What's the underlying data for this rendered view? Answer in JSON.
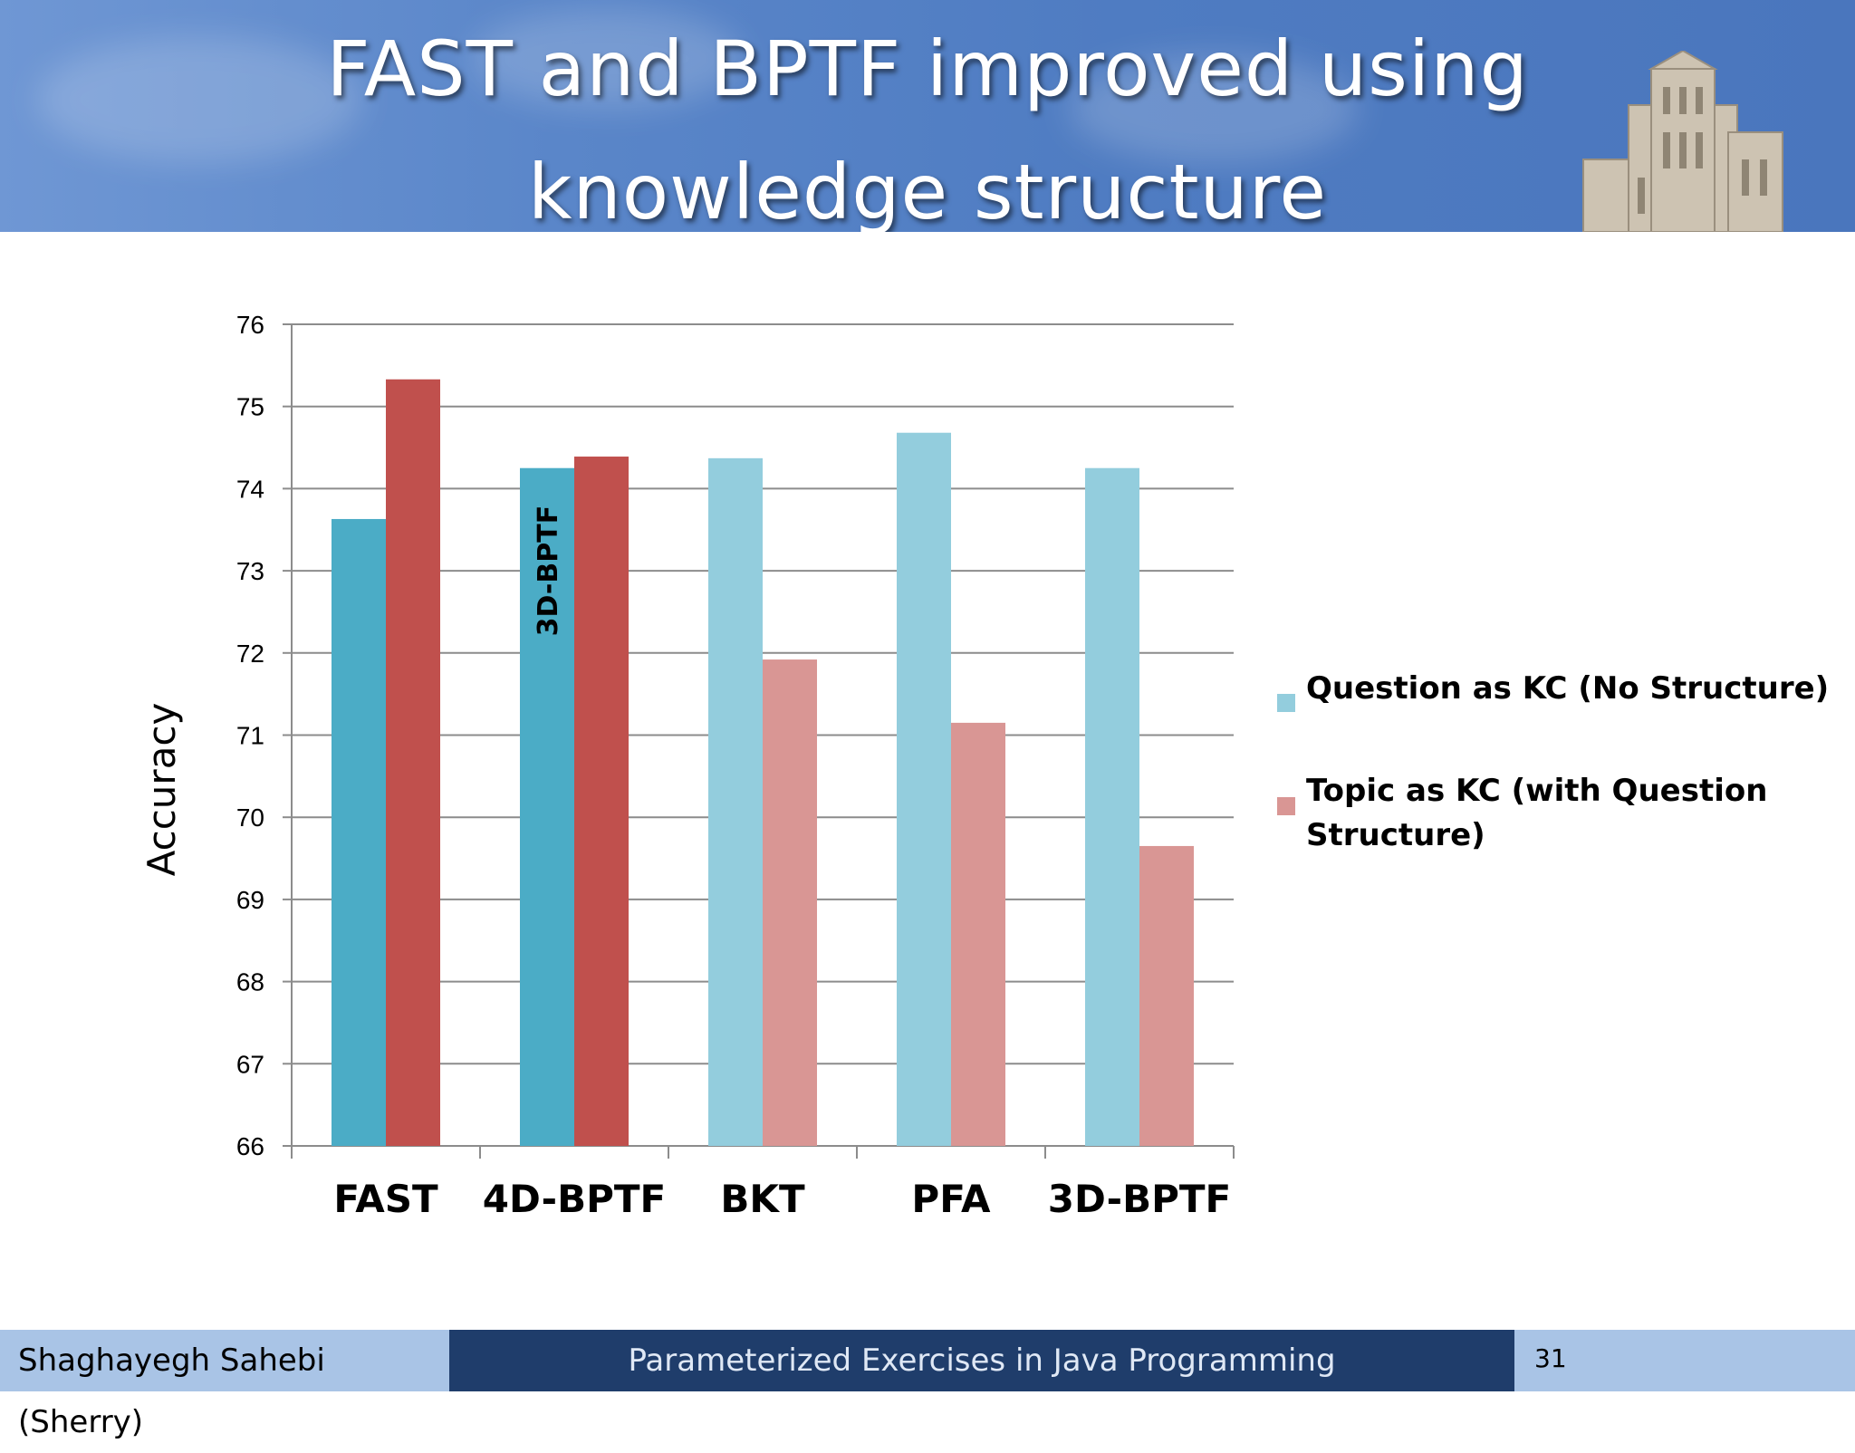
{
  "slide": {
    "title_line1": "FAST and BPTF improved using",
    "title_line2": "knowledge structure"
  },
  "chart_data": {
    "type": "bar",
    "categories": [
      "FAST",
      "4D-BPTF",
      "BKT",
      "PFA",
      "3D-BPTF"
    ],
    "series": [
      {
        "name": "Question as KC (No Structure)",
        "values": [
          73.63,
          74.25,
          74.37,
          74.68,
          74.25
        ],
        "colors": [
          "#4bacc6",
          "#4bacc6",
          "#93cddd",
          "#93cddd",
          "#93cddd"
        ]
      },
      {
        "name": "Topic as KC (with Question Structure)",
        "values": [
          75.33,
          74.39,
          71.92,
          71.15,
          69.65
        ],
        "colors": [
          "#c0504d",
          "#c0504d",
          "#d99694",
          "#d99694",
          "#d99694"
        ]
      }
    ],
    "ylabel": "Accuracy",
    "ylim": [
      66,
      76
    ],
    "yticks": [
      66,
      67,
      68,
      69,
      70,
      71,
      72,
      73,
      74,
      75,
      76
    ],
    "grid": true,
    "legend_position": "right",
    "legend_colors": [
      "#93cddd",
      "#d99694"
    ],
    "annotations": [
      {
        "text": "3D-BPTF",
        "category": "4D-BPTF",
        "series": 0,
        "y": 73
      }
    ]
  },
  "footer": {
    "presenter": "Shaghayegh Sahebi (Sherry)",
    "talk_title": "Parameterized Exercises in Java Programming",
    "page_number": "31"
  }
}
